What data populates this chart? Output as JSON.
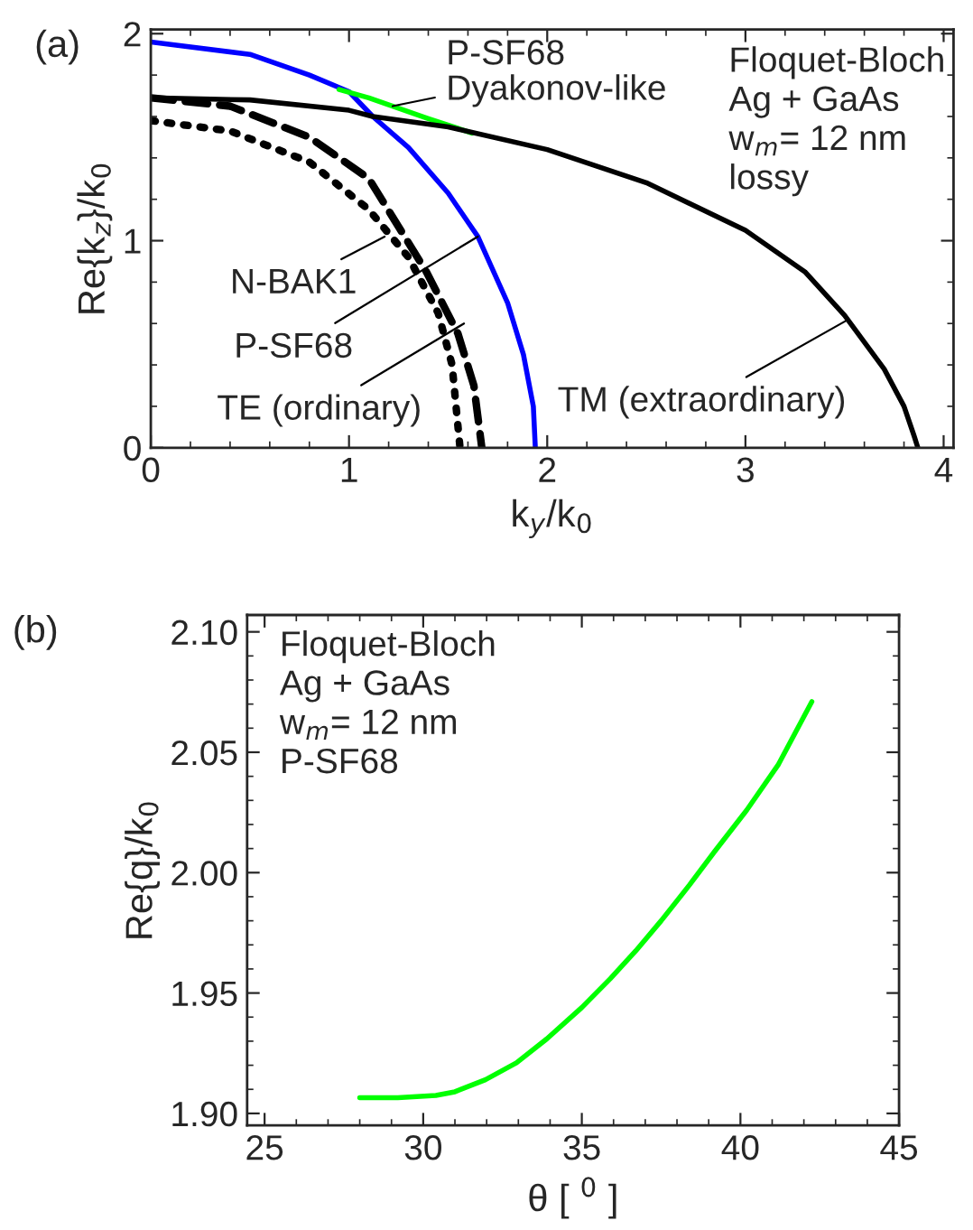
{
  "chart_data": [
    {
      "type": "line",
      "title": "(a)",
      "xlabel": "k$_{y}$/k$_{0}$",
      "ylabel": "Re{k$_{z}$}/k$_{0}$",
      "xlim": [
        0,
        4.05
      ],
      "ylim": [
        0,
        2.02
      ],
      "xticks": [
        0,
        1,
        2,
        3,
        4
      ],
      "yticks": [
        0,
        1,
        2
      ],
      "grid": false,
      "legend": false,
      "marker": "none",
      "series": [
        {
          "color": "#000000",
          "line_style": "dotted",
          "x": [
            0,
            0.4,
            0.8,
            1.1,
            1.3,
            1.45,
            1.52,
            1.56
          ],
          "values": [
            1.58,
            1.53,
            1.38,
            1.15,
            0.92,
            0.65,
            0.4,
            0
          ]
        },
        {
          "color": "#000000",
          "line_style": "dashed",
          "x": [
            0,
            0.4,
            0.8,
            1.1,
            1.39,
            1.55,
            1.63,
            1.67
          ],
          "values": [
            1.69,
            1.65,
            1.5,
            1.3,
            0.85,
            0.55,
            0.3,
            0
          ]
        },
        {
          "color": "#0000ff",
          "line_style": "solid",
          "x": [
            0,
            0.5,
            0.8,
            1.0,
            1.12,
            1.3,
            1.5,
            1.65,
            1.8,
            1.88,
            1.93,
            1.94
          ],
          "values": [
            1.96,
            1.9,
            1.8,
            1.72,
            1.6,
            1.45,
            1.23,
            1.02,
            0.7,
            0.45,
            0.2,
            0
          ]
        },
        {
          "color": "#00ff00",
          "line_style": "solid",
          "x": [
            0.95,
            1.1,
            1.25,
            1.4,
            1.62
          ],
          "values": [
            1.73,
            1.69,
            1.64,
            1.59,
            1.52
          ]
        },
        {
          "color": "#000000",
          "line_style": "solid",
          "x": [
            0,
            0.5,
            1.0,
            1.12,
            1.5,
            2.0,
            2.5,
            3.0,
            3.3,
            3.5,
            3.7,
            3.8,
            3.85,
            3.87
          ],
          "values": [
            1.69,
            1.68,
            1.63,
            1.6,
            1.55,
            1.44,
            1.28,
            1.05,
            0.85,
            0.64,
            0.38,
            0.2,
            0.06,
            0
          ]
        }
      ],
      "annotations": [
        {
          "text": "P-SF68\nDyakonov-like",
          "x": 1.22,
          "y": 1.65
        },
        {
          "text": "N-BAK1",
          "x": 1.18,
          "y": 1.02
        },
        {
          "text": "P-SF68",
          "x": 1.65,
          "y": 1.02
        },
        {
          "text": "TE (ordinary)",
          "x": 1.58,
          "y": 0.6
        },
        {
          "text": "TM (extraordinary)",
          "x": 3.52,
          "y": 0.62
        },
        "Floquet-Bloch\nAg + GaAs\nw$_{m}$= 12 nm\nlossy"
      ]
    },
    {
      "type": "line",
      "title": "(b)",
      "xlabel": "θ [ $^{0}$ ]",
      "ylabel": "Re{q}/k$_{0}$",
      "xlim": [
        24.45,
        45
      ],
      "ylim": [
        1.895,
        2.107
      ],
      "xticks": [
        25,
        30,
        35,
        40,
        45
      ],
      "yticks": [
        {
          "value": 1.9,
          "label": "1.90"
        },
        {
          "value": 1.95,
          "label": "1.95"
        },
        {
          "value": 2.0,
          "label": "2.00"
        },
        {
          "value": 2.05,
          "label": "2.05"
        },
        {
          "value": 2.1,
          "label": "2.10"
        }
      ],
      "grid": false,
      "legend": false,
      "marker": "none",
      "series": [
        {
          "color": "#00ff00",
          "line_style": "solid",
          "x": [
            28.0,
            29.2,
            30.4,
            31.0,
            31.96,
            32.94,
            33.9,
            35.0,
            35.9,
            36.7,
            37.5,
            38.4,
            39.2,
            40.2,
            41.2,
            42.25
          ],
          "values": [
            1.9065,
            1.9065,
            1.9075,
            1.909,
            1.914,
            1.921,
            1.931,
            1.944,
            1.956,
            1.9675,
            1.98,
            1.995,
            2.009,
            2.026,
            2.045,
            2.071
          ]
        }
      ],
      "annotations": [
        "Floquet-Bloch\nAg + GaAs\nw$_{m}$= 12 nm\nP-SF68"
      ]
    }
  ]
}
